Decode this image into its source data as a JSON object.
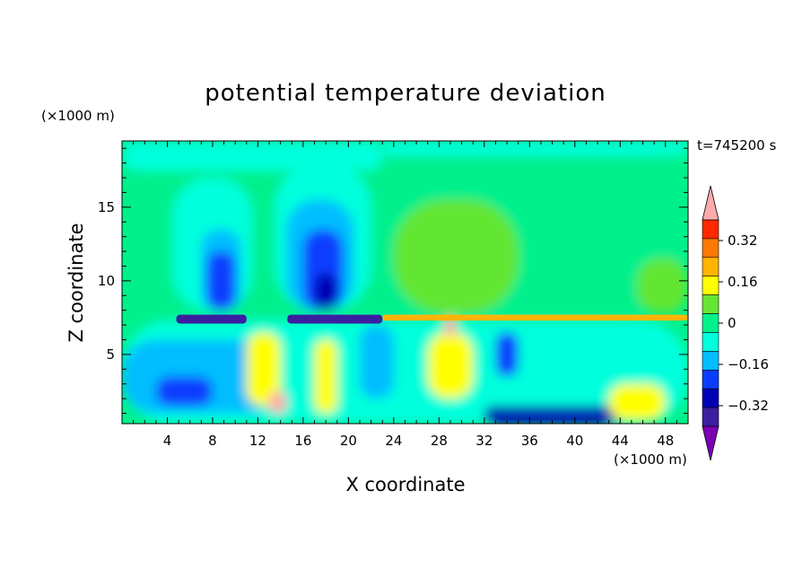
{
  "chart_data": {
    "type": "heatmap",
    "title": "potential temperature deviation",
    "xlabel": "X coordinate",
    "ylabel": "Z coordinate",
    "x_unit": "(×1000 m)",
    "y_unit": "(×1000 m)",
    "time_label": "t=745200 s",
    "xlim": [
      0,
      50
    ],
    "ylim": [
      0.3,
      19.5
    ],
    "x_ticks": [
      "4",
      "8",
      "12",
      "16",
      "20",
      "24",
      "28",
      "32",
      "36",
      "40",
      "44",
      "48"
    ],
    "y_ticks": [
      "5",
      "10",
      "15"
    ],
    "colorbar": {
      "levels": [
        -0.4,
        -0.32,
        -0.24,
        -0.16,
        -0.08,
        0,
        0.08,
        0.16,
        0.24,
        0.32,
        0.4
      ],
      "tick_labels": [
        "0.32",
        "0.16",
        "0",
        "−0.16",
        "−0.32"
      ],
      "colors": [
        "#7b00b4",
        "#3c1ea0",
        "#0000b4",
        "#0a3cff",
        "#00beff",
        "#00ffdc",
        "#00f08c",
        "#64e632",
        "#ffff00",
        "#ffb400",
        "#ff7800",
        "#ff2800",
        "#ffaaaa"
      ]
    },
    "regions": [
      {
        "value": 0.02,
        "x": [
          0,
          50
        ],
        "z": [
          7.5,
          19.5
        ]
      },
      {
        "value": -0.02,
        "x": [
          0,
          23
        ],
        "z": [
          17.5,
          19.5
        ]
      },
      {
        "value": -0.02,
        "x": [
          23,
          50
        ],
        "z": [
          18.5,
          19.5
        ]
      },
      {
        "value": -0.06,
        "x": [
          4.5,
          11.5
        ],
        "z": [
          8,
          17
        ]
      },
      {
        "value": -0.1,
        "x": [
          7,
          10.5
        ],
        "z": [
          8,
          13.5
        ]
      },
      {
        "value": -0.18,
        "x": [
          7.5,
          10
        ],
        "z": [
          8,
          12
        ]
      },
      {
        "value": -0.06,
        "x": [
          13.5,
          22
        ],
        "z": [
          8,
          18
        ]
      },
      {
        "value": -0.1,
        "x": [
          14.5,
          20.5
        ],
        "z": [
          8,
          15.5
        ]
      },
      {
        "value": -0.18,
        "x": [
          16,
          19.5
        ],
        "z": [
          8,
          13.5
        ]
      },
      {
        "value": -0.26,
        "x": [
          17,
          19
        ],
        "z": [
          8,
          10.5
        ]
      },
      {
        "value": 0.1,
        "x": [
          24,
          35
        ],
        "z": [
          7.8,
          15.5
        ]
      },
      {
        "value": 0.1,
        "x": [
          45.5,
          50
        ],
        "z": [
          7.8,
          11.5
        ]
      },
      {
        "value": -0.02,
        "x": [
          0,
          50
        ],
        "z": [
          0.3,
          7.3
        ]
      },
      {
        "value": -0.1,
        "x": [
          0,
          14
        ],
        "z": [
          1,
          6
        ]
      },
      {
        "value": -0.18,
        "x": [
          3,
          8
        ],
        "z": [
          1.5,
          3.5
        ]
      },
      {
        "value": 0.18,
        "x": [
          11,
          14
        ],
        "z": [
          1.5,
          6.5
        ]
      },
      {
        "value": 0.4,
        "x": [
          13,
          14.5
        ],
        "z": [
          1,
          2.5
        ]
      },
      {
        "value": 0.18,
        "x": [
          17,
          19
        ],
        "z": [
          1,
          6
        ]
      },
      {
        "value": -0.1,
        "x": [
          21,
          24
        ],
        "z": [
          2,
          7
        ]
      },
      {
        "value": 0.18,
        "x": [
          27,
          31
        ],
        "z": [
          2,
          6.5
        ]
      },
      {
        "value": -0.18,
        "x": [
          33,
          35
        ],
        "z": [
          3.5,
          6.5
        ]
      },
      {
        "value": -0.26,
        "x": [
          32,
          44
        ],
        "z": [
          0.3,
          1.5
        ]
      },
      {
        "value": 0.18,
        "x": [
          43,
          48
        ],
        "z": [
          0.5,
          3
        ]
      },
      {
        "value": -0.38,
        "x": [
          4.8,
          11
        ],
        "z": [
          7.1,
          7.7
        ]
      },
      {
        "value": -0.38,
        "x": [
          14.6,
          23
        ],
        "z": [
          7.1,
          7.7
        ]
      },
      {
        "value": 0.3,
        "x": [
          23,
          50
        ],
        "z": [
          7.3,
          7.7
        ]
      },
      {
        "value": 0.4,
        "x": [
          28.5,
          29.5
        ],
        "z": [
          6.2,
          7.6
        ]
      }
    ]
  }
}
